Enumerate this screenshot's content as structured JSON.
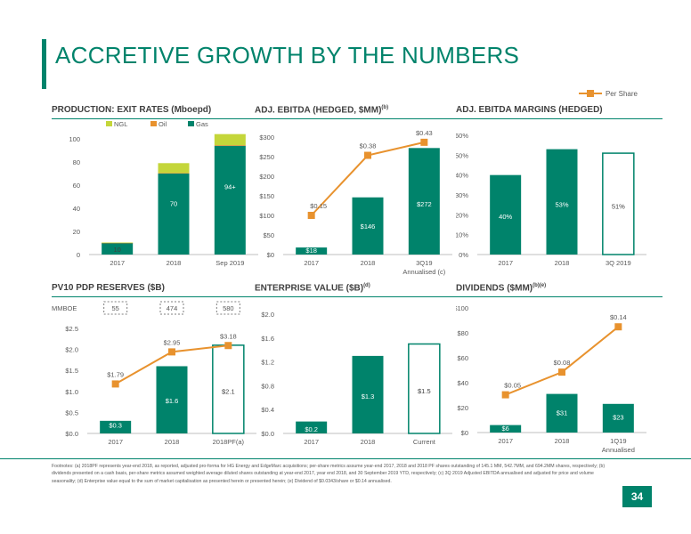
{
  "page": {
    "title": "ACCRETIVE GROWTH BY THE NUMBERS",
    "legend_label": "Per Share",
    "page_number": "34",
    "footnote": "Footnotes: (a) 2018PF represents year-end 2018, as reported, adjusted pro-forma for HG Energy and EdgeMarc acquisitions; per-share metrics assume year-end 2017, 2018 and 2018 PF shares outstanding of 145.1 MM, 542.7MM, and 694.2MM shares, respectively; (b) dividends presented on a cash basis, per-share metrics assumed weighted average diluted shares outstanding at year-end 2017, year end 2018, and 30 September 2019 YTD, respectively; (c) 3Q 2019 Adjusted EBITDA annualised and adjusted for price and volume seasonality; (d) Enterprise value equal to the sum of market capitalisation as presented herein or presented herein; (e) Dividend of $0.0343/share or $0.14 annualised."
  },
  "colors": {
    "green": "#00836b",
    "lime": "#c4d63a",
    "orange": "#e8922e",
    "dark_line": "#8a8a8a"
  },
  "chart_data": [
    {
      "id": "production",
      "type": "bar",
      "title": "PRODUCTION: EXIT RATES (Mboepd)",
      "title_sup": "",
      "categories": [
        "2017",
        "2018",
        "Sep 2019"
      ],
      "series": [
        {
          "name": "NGL",
          "values": [
            0.3,
            8.5,
            9.5
          ]
        },
        {
          "name": "Oil",
          "values": [
            0.1,
            0.5,
            0.6
          ]
        },
        {
          "name": "Gas",
          "values": [
            10,
            70,
            94
          ]
        }
      ],
      "bar_labels": [
        "10",
        "70",
        "94+"
      ],
      "yticks": [
        "0",
        "20",
        "40",
        "60",
        "80",
        "100"
      ],
      "ylim": [
        0,
        100
      ]
    },
    {
      "id": "ebitda",
      "type": "bar",
      "title": "ADJ. EBITDA (HEDGED, $MM)",
      "title_sup": "(b)",
      "categories": [
        "2017",
        "2018",
        "3Q19"
      ],
      "sub_label": "Annualised (c)",
      "values": [
        18,
        146,
        272
      ],
      "bar_labels": [
        "$18",
        "$146",
        "$272"
      ],
      "per_share": [
        0.15,
        0.38,
        0.43
      ],
      "per_share_labels": [
        "$0.15",
        "$0.38",
        "$0.43"
      ],
      "yticks": [
        "$0",
        "$50",
        "$100",
        "$150",
        "$200",
        "$250",
        "$300"
      ],
      "ylim": [
        0,
        300
      ],
      "line_ylim": [
        0,
        0.45
      ]
    },
    {
      "id": "margins",
      "type": "bar",
      "title": "ADJ. EBITDA MARGINS (HEDGED)",
      "title_sup": "",
      "categories": [
        "2017",
        "2018",
        "3Q 2019"
      ],
      "values": [
        40,
        53,
        51
      ],
      "bar_labels": [
        "40%",
        "53%",
        "51%"
      ],
      "yticks": [
        "0%",
        "10%",
        "20%",
        "30%",
        "40%",
        "50%",
        "60%"
      ],
      "ylim": [
        0,
        60
      ]
    },
    {
      "id": "reserves",
      "type": "bar",
      "title": "PV10 PDP RESERVES ($B)",
      "title_sup": "",
      "categories": [
        "2017",
        "2018",
        "2018PF(a)"
      ],
      "values": [
        0.3,
        1.6,
        2.1
      ],
      "bar_labels": [
        "$0.3",
        "$1.6",
        "$2.1"
      ],
      "per_share": [
        1.79,
        2.95,
        3.18
      ],
      "per_share_labels": [
        "$1.79",
        "$2.95",
        "$3.18"
      ],
      "mmboe_label": "MMBOE",
      "mmboe": [
        "55",
        "474",
        "580"
      ],
      "yticks": [
        "$0.0",
        "$0.5",
        "$1.0",
        "$1.5",
        "$2.0",
        "$2.5"
      ],
      "ylim": [
        0,
        2.5
      ],
      "line_ylim": [
        0,
        3.8
      ]
    },
    {
      "id": "ev",
      "type": "bar",
      "title": "ENTERPRISE VALUE ($B)",
      "title_sup": "(d)",
      "categories": [
        "2017",
        "2018",
        "Current"
      ],
      "values": [
        0.2,
        1.3,
        1.5
      ],
      "bar_labels": [
        "$0.2",
        "$1.3",
        "$1.5"
      ],
      "yticks": [
        "$0.0",
        "$0.4",
        "$0.8",
        "$1.2",
        "$1.6",
        "$2.0"
      ],
      "ylim": [
        0,
        2.0
      ]
    },
    {
      "id": "dividends",
      "type": "bar",
      "title": "DIVIDENDS ($MM)",
      "title_sup": "(b)(e)",
      "categories": [
        "2017",
        "2018",
        "1Q19"
      ],
      "sub_label": "Annualised",
      "values": [
        6,
        31,
        23
      ],
      "bar_labels": [
        "$6",
        "$31",
        "$23"
      ],
      "per_share": [
        0.05,
        0.08,
        0.14
      ],
      "per_share_labels": [
        "$0.05",
        "$0.08",
        "$0.14"
      ],
      "yticks": [
        "$0",
        "$20",
        "$40",
        "$60",
        "$80",
        "$100"
      ],
      "ylim": [
        0,
        100
      ],
      "line_ylim": [
        0,
        0.165
      ]
    }
  ]
}
